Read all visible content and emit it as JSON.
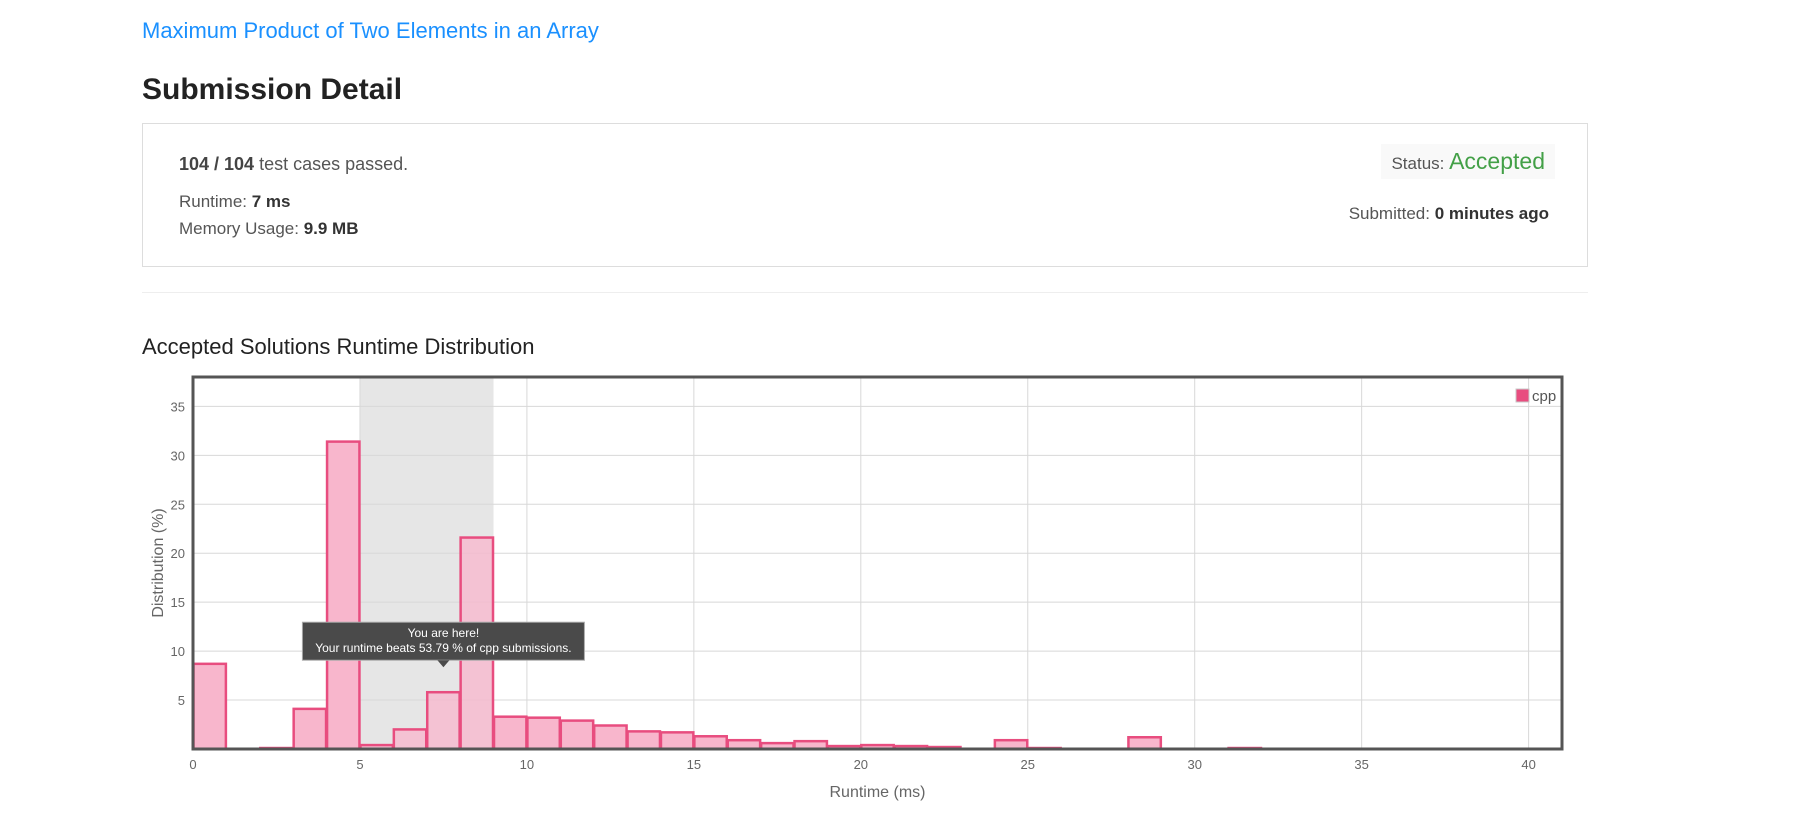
{
  "problem": {
    "title": "Maximum Product of Two Elements in an Array"
  },
  "page_title": "Submission Detail",
  "summary": {
    "cases_passed": "104 / 104",
    "cases_suffix": " test cases passed.",
    "runtime_label": "Runtime: ",
    "runtime_value": "7 ms",
    "memory_label": "Memory Usage: ",
    "memory_value": "9.9 MB",
    "status_label": "Status: ",
    "status_value": "Accepted",
    "submitted_label": "Submitted: ",
    "submitted_value": "0 minutes ago"
  },
  "chart_title": "Accepted Solutions Runtime Distribution",
  "colors": {
    "link": "#1a90ff",
    "accepted": "#43a047",
    "bar_fill": "#f8b6cc",
    "bar_stroke": "#e84d7f",
    "highlight_band": "#e6e6e6",
    "tooltip_bg": "#4a4a4a"
  },
  "chart_data": {
    "type": "bar",
    "title": "",
    "xlabel": "Runtime (ms)",
    "ylabel": "Distribution (%)",
    "xlim": [
      0,
      41
    ],
    "ylim": [
      0,
      38
    ],
    "x_ticks": [
      0,
      5,
      10,
      15,
      20,
      25,
      30,
      35,
      40
    ],
    "y_ticks": [
      5,
      10,
      15,
      20,
      25,
      30,
      35
    ],
    "grid": true,
    "legend": {
      "position": "top-right",
      "entries": [
        "cpp"
      ]
    },
    "series": [
      {
        "name": "cpp",
        "bin_width": 1,
        "bins": [
          {
            "x": 0,
            "value": 8.7
          },
          {
            "x": 2,
            "value": 0.1
          },
          {
            "x": 3,
            "value": 4.1
          },
          {
            "x": 4,
            "value": 31.4
          },
          {
            "x": 5,
            "value": 0.4
          },
          {
            "x": 6,
            "value": 2.0
          },
          {
            "x": 7,
            "value": 5.8
          },
          {
            "x": 8,
            "value": 21.6
          },
          {
            "x": 9,
            "value": 3.3
          },
          {
            "x": 10,
            "value": 3.2
          },
          {
            "x": 11,
            "value": 2.9
          },
          {
            "x": 12,
            "value": 2.4
          },
          {
            "x": 13,
            "value": 1.8
          },
          {
            "x": 14,
            "value": 1.7
          },
          {
            "x": 15,
            "value": 1.3
          },
          {
            "x": 16,
            "value": 0.9
          },
          {
            "x": 17,
            "value": 0.6
          },
          {
            "x": 18,
            "value": 0.8
          },
          {
            "x": 19,
            "value": 0.3
          },
          {
            "x": 20,
            "value": 0.4
          },
          {
            "x": 21,
            "value": 0.3
          },
          {
            "x": 22,
            "value": 0.2
          },
          {
            "x": 24,
            "value": 0.9
          },
          {
            "x": 25,
            "value": 0.1
          },
          {
            "x": 28,
            "value": 1.2
          },
          {
            "x": 31,
            "value": 0.1
          }
        ]
      }
    ],
    "highlight_range": [
      5,
      9
    ],
    "highlight_bin_x": 7,
    "tooltip": {
      "line1": "You are here!",
      "line2": "Your runtime beats 53.79 % of cpp submissions."
    }
  }
}
